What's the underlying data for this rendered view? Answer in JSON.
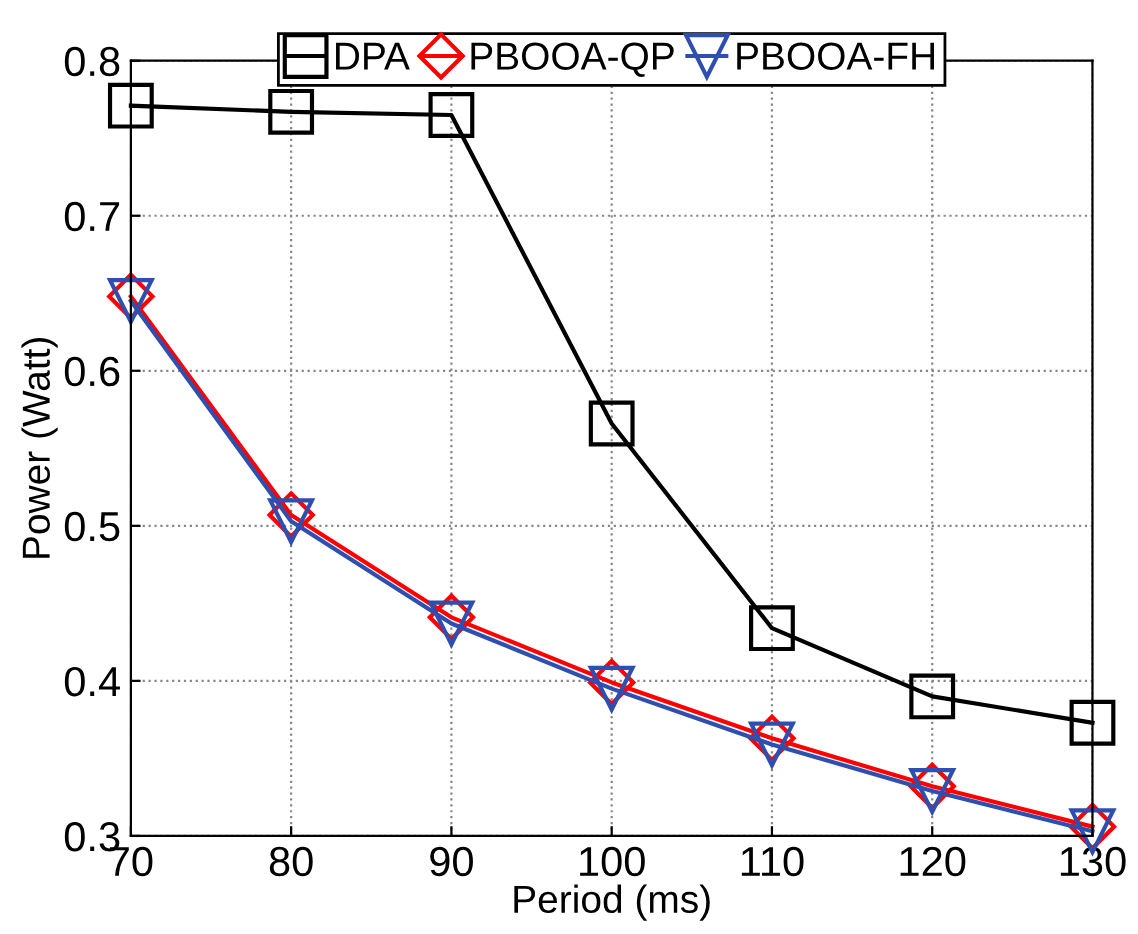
{
  "chart_data": {
    "type": "line",
    "xlabel": "Period (ms)",
    "ylabel": "Power (Watt)",
    "x": [
      70,
      80,
      90,
      100,
      110,
      120,
      130
    ],
    "series": [
      {
        "name": "DPA",
        "color": "#000000",
        "marker": "square",
        "values": [
          0.771,
          0.767,
          0.765,
          0.566,
          0.434,
          0.39,
          0.373
        ]
      },
      {
        "name": "PBOOA-QP",
        "color": "#ff0000",
        "marker": "diamond",
        "values": [
          0.648,
          0.507,
          0.441,
          0.399,
          0.363,
          0.332,
          0.306
        ]
      },
      {
        "name": "PBOOA-FH",
        "color": "#2e4fb0",
        "marker": "triangle",
        "values": [
          0.645,
          0.503,
          0.437,
          0.395,
          0.359,
          0.329,
          0.303
        ]
      }
    ],
    "xlim": [
      70,
      130
    ],
    "xticks": [
      70,
      80,
      90,
      100,
      110,
      120,
      130
    ],
    "ylim": [
      0.3,
      0.8
    ],
    "yticks": [
      0.3,
      0.4,
      0.5,
      0.6,
      0.7,
      0.8
    ],
    "grid": true,
    "legend": "top",
    "line_style": "solid"
  }
}
